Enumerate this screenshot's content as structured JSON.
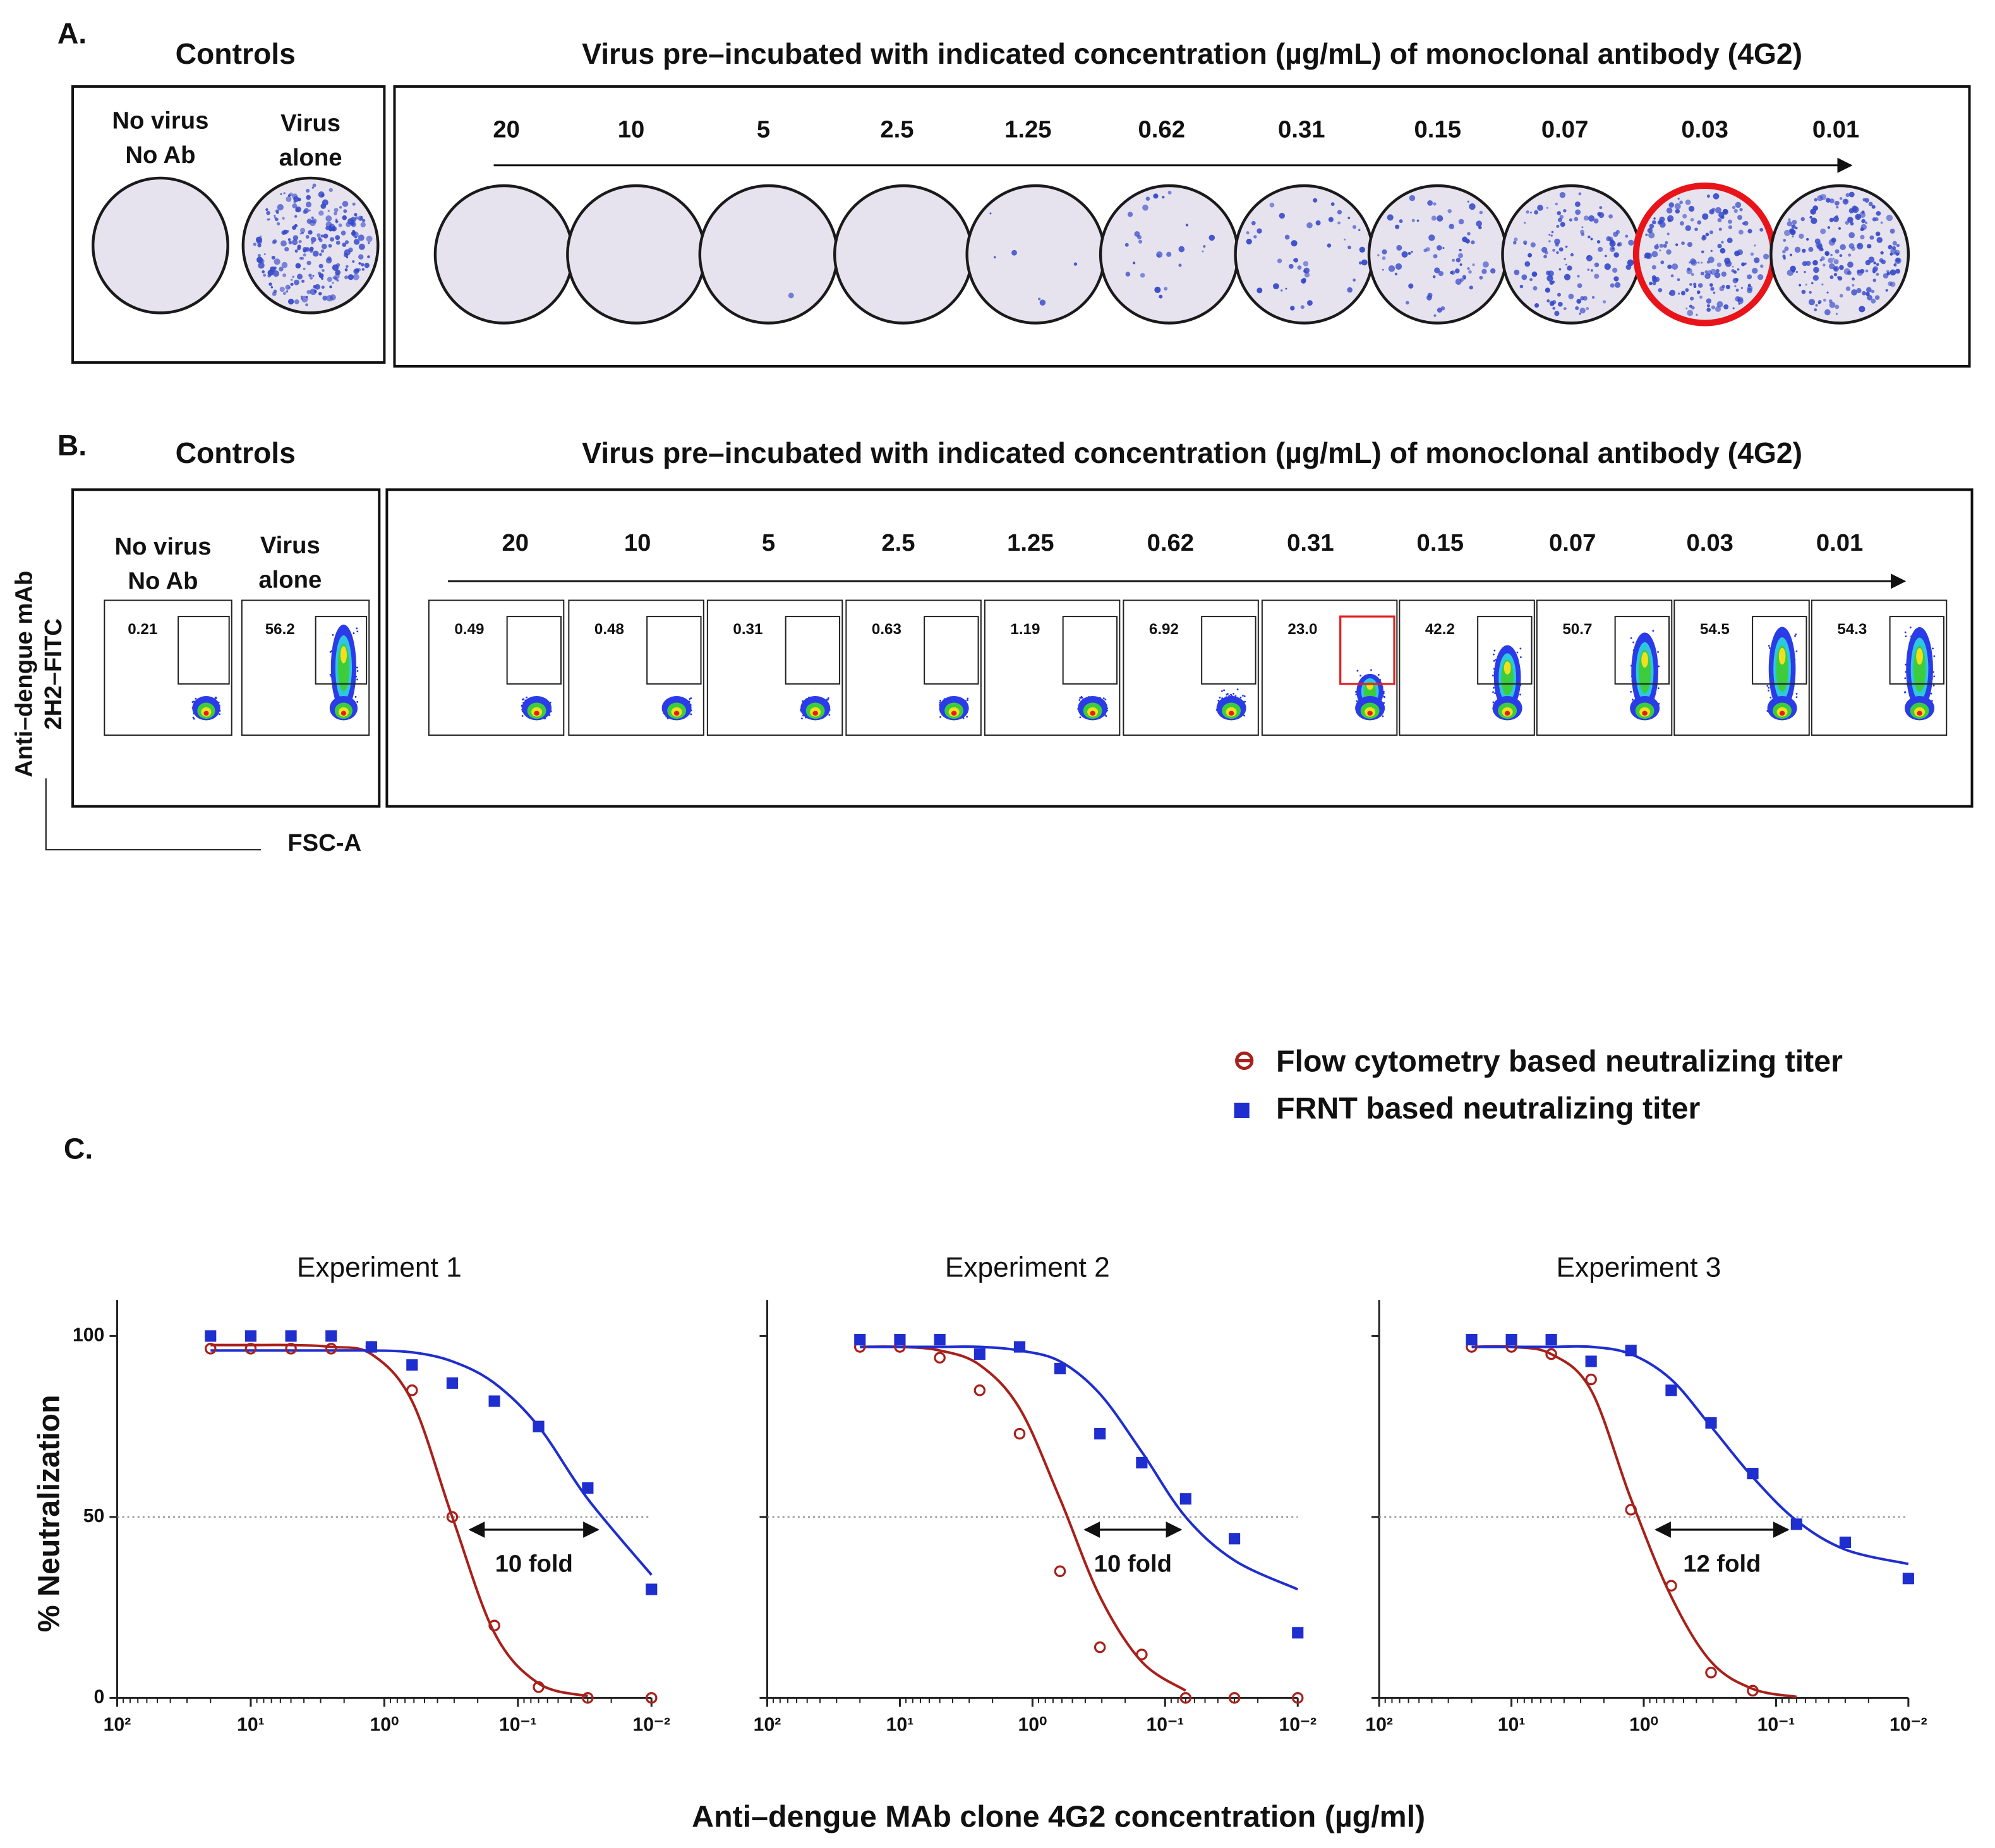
{
  "panel_a": {
    "label": "A.",
    "controls_title": "Controls",
    "title": "Virus pre–incubated with indicated concentration (µg/mL) of monoclonal antibody (4G2)",
    "control_labels": [
      [
        "No virus",
        "No Ab"
      ],
      [
        "Virus",
        "alone"
      ]
    ],
    "concentrations": [
      "20",
      "10",
      "5",
      "2.5",
      "1.25",
      "0.62",
      "0.31",
      "0.15",
      "0.07",
      "0.03",
      "0.01"
    ],
    "highlight_index": 9
  },
  "panel_b": {
    "label": "B.",
    "controls_title": "Controls",
    "title": "Virus pre–incubated with indicated concentration (µg/mL) of monoclonal antibody (4G2)",
    "control_labels": [
      [
        "No virus",
        "No Ab"
      ],
      [
        "Virus",
        "alone"
      ]
    ],
    "control_percentages": [
      "0.21",
      "56.2"
    ],
    "concentrations": [
      "20",
      "10",
      "5",
      "2.5",
      "1.25",
      "0.62",
      "0.31",
      "0.15",
      "0.07",
      "0.03",
      "0.01"
    ],
    "percentages": [
      "0.49",
      "0.48",
      "0.31",
      "0.63",
      "1.19",
      "6.92",
      "23.0",
      "42.2",
      "50.7",
      "54.5",
      "54.3"
    ],
    "highlight_index": 6,
    "y_label": [
      "Anti–dengue  mAb",
      "2H2–FITC"
    ],
    "x_label": "FSC-A"
  },
  "panel_c": {
    "label": "C.",
    "x_label": "Anti–dengue MAb clone 4G2 concentration (µg/ml)",
    "y_label": "% Neutralization"
  },
  "chart_data": [
    {
      "type": "scatter",
      "title": "Experiment 1",
      "log_x": true,
      "legend": true,
      "x": [
        20,
        10,
        5,
        2.5,
        1.25,
        0.62,
        0.31,
        0.15,
        0.07,
        0.03,
        0.01
      ],
      "xlim": [
        100,
        0.01
      ],
      "xticks": [
        {
          "value": 100,
          "label": "10²"
        },
        {
          "value": 10,
          "label": "10¹"
        },
        {
          "value": 1,
          "label": "10⁰"
        },
        {
          "value": 0.1,
          "label": "10⁻¹"
        },
        {
          "value": 0.01,
          "label": "10⁻²"
        }
      ],
      "ylim": [
        0,
        110
      ],
      "yticks": [
        0,
        50,
        100
      ],
      "ytick_labels": true,
      "reference_line": 50,
      "annotation": "10 fold",
      "series": [
        {
          "name": "Flow cytometry based neutralizing titer",
          "color": "#a8201a",
          "marker": "open-circle",
          "values": [
            96.5,
            96.5,
            96.5,
            96.5,
            97,
            85,
            50,
            20,
            3,
            0,
            0
          ],
          "fit": [
            97.5,
            97.5,
            97.5,
            97,
            95,
            82,
            50,
            18,
            4,
            0.5,
            null
          ]
        },
        {
          "name": "FRNT based neutralizing titer",
          "color": "#1f2ecf",
          "marker": "square",
          "values": [
            100,
            100,
            100,
            100,
            97,
            92,
            87,
            82,
            75,
            58,
            30
          ],
          "fit": [
            96,
            96,
            96,
            96,
            96,
            95.5,
            93,
            87,
            75,
            55,
            34
          ]
        }
      ]
    },
    {
      "type": "scatter",
      "title": "Experiment 2",
      "log_x": true,
      "legend": false,
      "x": [
        20,
        10,
        5,
        2.5,
        1.25,
        0.62,
        0.31,
        0.15,
        0.07,
        0.03,
        0.01
      ],
      "xlim": [
        100,
        0.01
      ],
      "xticks": [
        {
          "value": 100,
          "label": "10²"
        },
        {
          "value": 10,
          "label": "10¹"
        },
        {
          "value": 1,
          "label": "10⁰"
        },
        {
          "value": 0.1,
          "label": "10⁻¹"
        },
        {
          "value": 0.01,
          "label": "10⁻²"
        }
      ],
      "ylim": [
        0,
        110
      ],
      "yticks": [
        0,
        50,
        100
      ],
      "ytick_labels": false,
      "reference_line": 50,
      "annotation": "10 fold",
      "series": [
        {
          "name": "Flow cytometry based neutralizing titer",
          "color": "#a8201a",
          "marker": "open-circle",
          "values": [
            97,
            97,
            94,
            85,
            73,
            35,
            14,
            12,
            0,
            0,
            0
          ],
          "fit": [
            97,
            97,
            96,
            92,
            80,
            55,
            28,
            10,
            2,
            null,
            null
          ]
        },
        {
          "name": "FRNT based neutralizing titer",
          "color": "#1f2ecf",
          "marker": "square",
          "values": [
            99,
            99,
            99,
            95,
            97,
            91,
            73,
            65,
            55,
            44,
            18
          ],
          "fit": [
            97,
            97,
            97,
            97,
            96,
            93,
            84,
            68,
            50,
            38,
            30
          ]
        }
      ]
    },
    {
      "type": "scatter",
      "title": "Experiment 3",
      "log_x": true,
      "legend": false,
      "x": [
        20,
        10,
        5,
        2.5,
        1.25,
        0.62,
        0.31,
        0.15,
        0.07,
        0.03,
        0.01
      ],
      "xlim": [
        100,
        0.01
      ],
      "xticks": [
        {
          "value": 100,
          "label": "10²"
        },
        {
          "value": 10,
          "label": "10¹"
        },
        {
          "value": 1,
          "label": "10⁰"
        },
        {
          "value": 0.1,
          "label": "10⁻¹"
        },
        {
          "value": 0.01,
          "label": "10⁻²"
        }
      ],
      "ylim": [
        0,
        110
      ],
      "yticks": [
        0,
        50,
        100
      ],
      "ytick_labels": false,
      "reference_line": 50,
      "annotation": "12 fold",
      "series": [
        {
          "name": "Flow cytometry based neutralizing titer",
          "color": "#a8201a",
          "marker": "open-circle",
          "values": [
            97,
            97,
            95,
            88,
            52,
            31,
            7,
            2,
            null,
            null,
            null
          ],
          "fit": [
            97,
            97,
            95,
            85,
            55,
            28,
            10,
            2.5,
            0.3,
            null,
            null
          ]
        },
        {
          "name": "FRNT based neutralizing titer",
          "color": "#1f2ecf",
          "marker": "square",
          "values": [
            99,
            99,
            99,
            93,
            96,
            85,
            76,
            62,
            48,
            43,
            33
          ],
          "fit": [
            97,
            97,
            97,
            97,
            95,
            88,
            75,
            61,
            49,
            41,
            37
          ]
        }
      ]
    }
  ]
}
